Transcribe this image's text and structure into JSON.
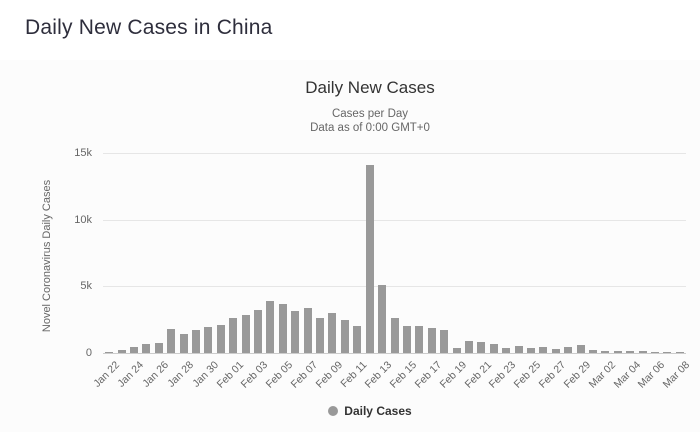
{
  "page": {
    "title": "Daily New Cases in China"
  },
  "chart": {
    "title": "Daily New Cases",
    "subtitle_line1": "Cases per Day",
    "subtitle_line2": "Data as of 0:00 GMT+0",
    "y_axis_title": "Novel Coronavirus Daily Cases",
    "legend_label": "Daily Cases"
  },
  "colors": {
    "bar": "#999999",
    "grid": "#e6e6e6",
    "axis_line": "#cccccc",
    "tick_text": "#666666",
    "title_text": "#333333",
    "subtitle_text": "#666666",
    "page_title_text": "#2e2e3c",
    "chart_background": "#fcfcfc"
  },
  "chart_data": {
    "type": "bar",
    "title": "Daily New Cases",
    "subtitle": [
      "Cases per Day",
      "Data as of 0:00 GMT+0"
    ],
    "xlabel": "",
    "ylabel": "Novel Coronavirus Daily Cases",
    "ylim": [
      0,
      15000
    ],
    "yticks": [
      {
        "label": "0",
        "value": 0
      },
      {
        "label": "5k",
        "value": 5000
      },
      {
        "label": "10k",
        "value": 10000
      },
      {
        "label": "15k",
        "value": 15000
      }
    ],
    "x_label_step": 2,
    "grid": true,
    "legend_position": "bottom",
    "series_name": "Daily Cases",
    "categories": [
      "Jan 22",
      "Jan 23",
      "Jan 24",
      "Jan 25",
      "Jan 26",
      "Jan 27",
      "Jan 28",
      "Jan 29",
      "Jan 30",
      "Jan 31",
      "Feb 01",
      "Feb 02",
      "Feb 03",
      "Feb 04",
      "Feb 05",
      "Feb 06",
      "Feb 07",
      "Feb 08",
      "Feb 09",
      "Feb 10",
      "Feb 11",
      "Feb 12",
      "Feb 13",
      "Feb 14",
      "Feb 15",
      "Feb 16",
      "Feb 17",
      "Feb 18",
      "Feb 19",
      "Feb 20",
      "Feb 21",
      "Feb 22",
      "Feb 23",
      "Feb 24",
      "Feb 25",
      "Feb 26",
      "Feb 27",
      "Feb 28",
      "Feb 29",
      "Mar 01",
      "Mar 02",
      "Mar 03",
      "Mar 04",
      "Mar 05",
      "Mar 06",
      "Mar 07",
      "Mar 08"
    ],
    "values": [
      98,
      259,
      441,
      665,
      769,
      1771,
      1459,
      1737,
      1981,
      2099,
      2589,
      2825,
      3233,
      3892,
      3697,
      3143,
      3385,
      2652,
      2973,
      2467,
      2015,
      14108,
      5090,
      2641,
      2009,
      2048,
      1888,
      1749,
      391,
      889,
      823,
      648,
      409,
      508,
      406,
      433,
      327,
      427,
      573,
      202,
      125,
      119,
      139,
      143,
      99,
      44,
      40
    ]
  }
}
